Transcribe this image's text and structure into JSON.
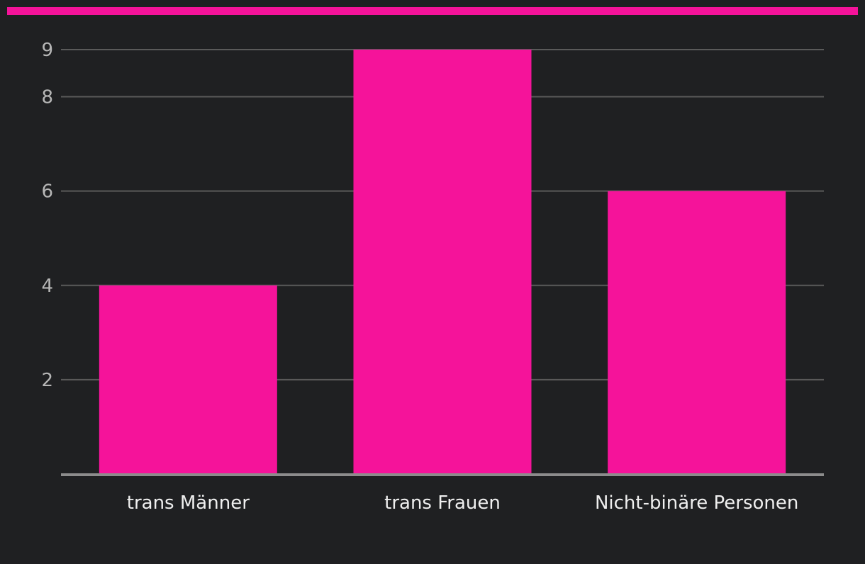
{
  "chart_data": {
    "type": "bar",
    "categories": [
      "trans Männer",
      "trans Frauen",
      "Nicht-binäre Personen"
    ],
    "values": [
      4,
      9,
      6
    ],
    "yticks": [
      2,
      4,
      6,
      8,
      9
    ],
    "ylim": [
      0,
      9
    ],
    "grid": true,
    "legend": "none",
    "title": "",
    "xlabel": "",
    "ylabel": ""
  },
  "colors": {
    "bar": "#f5139a",
    "accent_bar": "#f5139a",
    "background": "#1f2022",
    "grid": "#5a5a5a",
    "axis": "#8c8c8c",
    "tick_text": "#b7b7b7",
    "category_text": "#efefef"
  }
}
